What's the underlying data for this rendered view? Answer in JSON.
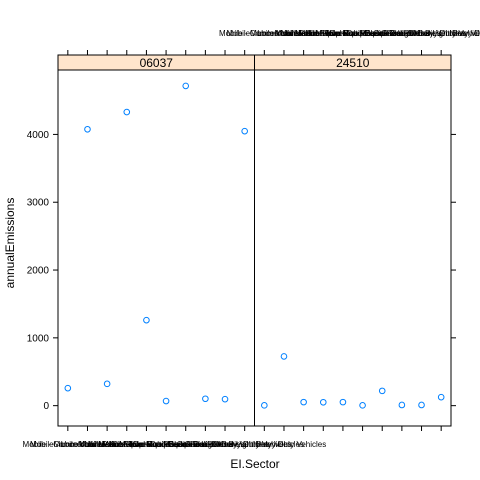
{
  "chart_data": {
    "type": "scatter",
    "xlabel": "EI.Sector",
    "ylabel": "annualEmissions",
    "y_ticks": [
      0,
      1000,
      2000,
      3000,
      4000
    ],
    "ylim": [
      -300,
      4950
    ],
    "categories": [
      "Mobile - Locomotives",
      "Mobile - Commercial Marine Vessels",
      "Mobile - Aircraft",
      "Mobile - Non-Road Equipment - Gasoline",
      "Mobile - Non-Road Equipment - Diesel",
      "Mobile - Non-Road Equipment - Other",
      "Mobile - On-Road Gasoline Light Duty Vehicles",
      "Mobile - On-Road Gasoline Heavy Duty Vehicles",
      "Mobile - On-Road Diesel Light Duty Vehicles",
      "Mobile - On-Road Diesel Heavy Duty Vehicles"
    ],
    "panels": [
      {
        "name": "06037",
        "values": [
          258,
          4076,
          322,
          4330,
          1261,
          68,
          4715,
          102,
          96,
          4048
        ]
      },
      {
        "name": "24510",
        "values": [
          5,
          726,
          52,
          50,
          52,
          5,
          218,
          10,
          10,
          125
        ]
      }
    ],
    "point_color": "#0080ff",
    "strip_color": "#ffe5cc",
    "grid": false
  }
}
